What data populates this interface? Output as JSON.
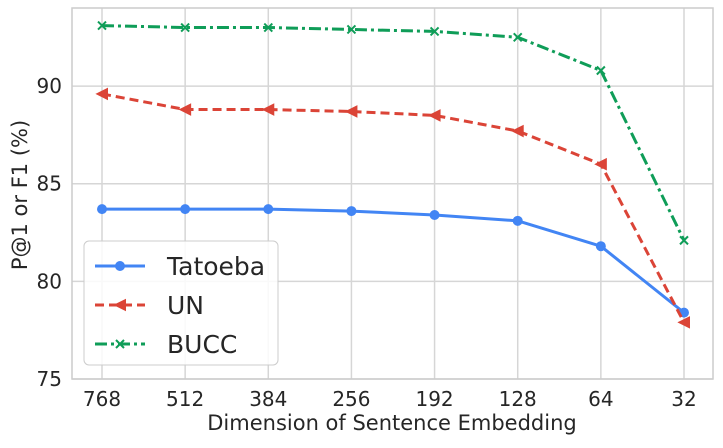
{
  "chart_data": {
    "type": "line",
    "title": "",
    "xlabel": "Dimension of Sentence Embedding",
    "ylabel": "P@1 or F1 (%)",
    "categories": [
      "768",
      "512",
      "384",
      "256",
      "192",
      "128",
      "64",
      "32"
    ],
    "ylim": [
      75,
      94
    ],
    "yticks": [
      75,
      80,
      85,
      90
    ],
    "grid": true,
    "legend_position": "bottom-left",
    "series": [
      {
        "name": "Tatoeba",
        "values": [
          83.7,
          83.7,
          83.7,
          83.6,
          83.4,
          83.1,
          81.8,
          78.4
        ],
        "color": "#4285F4",
        "line_style": "solid",
        "marker": "circle"
      },
      {
        "name": "UN",
        "values": [
          89.6,
          88.8,
          88.8,
          88.7,
          88.5,
          87.7,
          86.0,
          77.9
        ],
        "color": "#DB4437",
        "line_style": "dashed",
        "marker": "triangle-left"
      },
      {
        "name": "BUCC",
        "values": [
          93.1,
          93.0,
          93.0,
          92.9,
          92.8,
          92.5,
          90.8,
          82.1
        ],
        "color": "#0F9D58",
        "line_style": "dash-dot",
        "marker": "x"
      }
    ]
  }
}
